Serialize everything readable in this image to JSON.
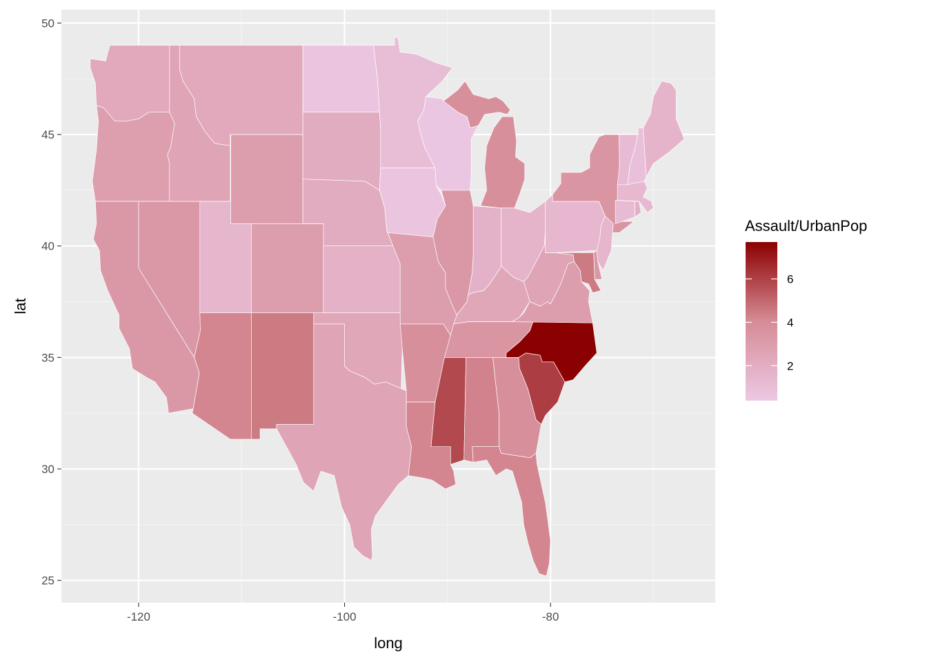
{
  "chart_data": {
    "type": "choropleth",
    "xlabel": "long",
    "ylabel": "lat",
    "xlim": [
      -127.5,
      -64.0
    ],
    "ylim": [
      24.0,
      50.6
    ],
    "x_ticks": [
      -120,
      -100,
      -80
    ],
    "x_tick_labels": [
      "-120",
      "-100",
      "-80"
    ],
    "y_ticks": [
      25,
      30,
      35,
      40,
      45,
      50
    ],
    "y_tick_labels": [
      "25",
      "30",
      "35",
      "40",
      "45",
      "50"
    ],
    "grid": true,
    "legend": {
      "title": "Assault/UrbanPop",
      "placement": "right",
      "range": [
        0.39,
        7.7
      ],
      "breaks": [
        2,
        4,
        6
      ],
      "break_labels": [
        "2",
        "4",
        "6"
      ],
      "low_color": "#ecc8e4",
      "high_color": "#8b0000"
    },
    "colors": {
      "panel_background": "#ebebeb",
      "grid_major": "#ffffff",
      "grid_minor": "#f5f5f5",
      "state_border": "#ffffff"
    },
    "regions": [
      {
        "name": "washington",
        "value": 2.3
      },
      {
        "name": "oregon",
        "value": 2.9
      },
      {
        "name": "california",
        "value": 3.3
      },
      {
        "name": "nevada",
        "value": 3.3
      },
      {
        "name": "idaho",
        "value": 2.6
      },
      {
        "name": "montana",
        "value": 2.3
      },
      {
        "name": "wyoming",
        "value": 3.0
      },
      {
        "name": "utah",
        "value": 1.5
      },
      {
        "name": "arizona",
        "value": 4.2
      },
      {
        "name": "colorado",
        "value": 3.0
      },
      {
        "name": "new mexico",
        "value": 4.5
      },
      {
        "name": "north dakota",
        "value": 0.6
      },
      {
        "name": "south dakota",
        "value": 2.1
      },
      {
        "name": "nebraska",
        "value": 2.1
      },
      {
        "name": "kansas",
        "value": 1.8
      },
      {
        "name": "oklahoma",
        "value": 2.4
      },
      {
        "name": "texas",
        "value": 2.6
      },
      {
        "name": "minnesota",
        "value": 1.0
      },
      {
        "name": "iowa",
        "value": 0.6
      },
      {
        "name": "missouri",
        "value": 3.0
      },
      {
        "name": "arkansas",
        "value": 3.8
      },
      {
        "name": "louisiana",
        "value": 4.2
      },
      {
        "name": "wisconsin",
        "value": 0.5
      },
      {
        "name": "illinois",
        "value": 3.3
      },
      {
        "name": "michigan",
        "value": 3.8
      },
      {
        "name": "indiana",
        "value": 1.7
      },
      {
        "name": "ohio",
        "value": 1.6
      },
      {
        "name": "kentucky",
        "value": 2.4
      },
      {
        "name": "tennessee",
        "value": 3.5
      },
      {
        "name": "mississippi",
        "value": 5.8
      },
      {
        "name": "alabama",
        "value": 4.3
      },
      {
        "name": "georgia",
        "value": 3.8
      },
      {
        "name": "florida",
        "value": 4.2
      },
      {
        "name": "south carolina",
        "value": 6.1
      },
      {
        "name": "north carolina",
        "value": 7.7
      },
      {
        "name": "virginia",
        "value": 3.0
      },
      {
        "name": "west virginia",
        "value": 2.6
      },
      {
        "name": "pennsylvania",
        "value": 1.4
      },
      {
        "name": "new york",
        "value": 3.5
      },
      {
        "name": "maryland",
        "value": 4.5
      },
      {
        "name": "delaware",
        "value": 3.4
      },
      {
        "name": "new jersey",
        "value": 1.5
      },
      {
        "name": "connecticut",
        "value": 1.2
      },
      {
        "name": "rhode island",
        "value": 1.9
      },
      {
        "name": "massachusetts",
        "value": 1.3
      },
      {
        "name": "vermont",
        "value": 1.2
      },
      {
        "name": "new hampshire",
        "value": 0.9
      },
      {
        "name": "maine",
        "value": 1.6
      }
    ]
  }
}
